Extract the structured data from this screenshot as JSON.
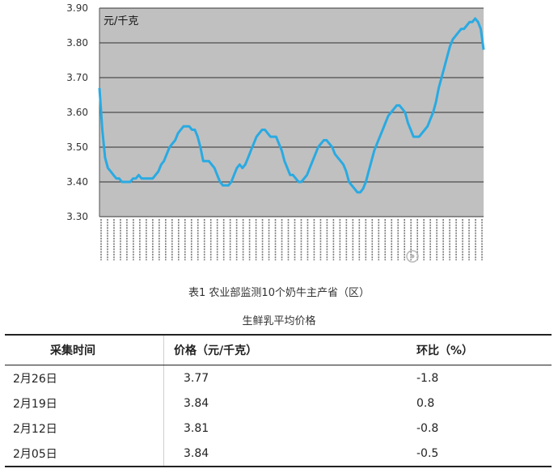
{
  "chart_data": {
    "type": "line",
    "unit_label": "元/千克",
    "ylim": [
      3.3,
      3.9
    ],
    "yticks": [
      "3.30",
      "3.40",
      "3.50",
      "3.60",
      "3.70",
      "3.80",
      "3.90"
    ],
    "grid": true,
    "line_color": "#29aae2",
    "plot_bg": "#c0c0c0",
    "series": [
      {
        "values": [
          3.67,
          3.55,
          3.47,
          3.44,
          3.43,
          3.42,
          3.41,
          3.41,
          3.4,
          3.4,
          3.4,
          3.4,
          3.41,
          3.41,
          3.42,
          3.41,
          3.41,
          3.41,
          3.41,
          3.41,
          3.42,
          3.43,
          3.45,
          3.46,
          3.48,
          3.5,
          3.51,
          3.52,
          3.54,
          3.55,
          3.56,
          3.56,
          3.56,
          3.55,
          3.55,
          3.53,
          3.5,
          3.46,
          3.46,
          3.46,
          3.45,
          3.44,
          3.42,
          3.4,
          3.39,
          3.39,
          3.39,
          3.4,
          3.42,
          3.44,
          3.45,
          3.44,
          3.45,
          3.47,
          3.49,
          3.51,
          3.53,
          3.54,
          3.55,
          3.55,
          3.54,
          3.53,
          3.53,
          3.53,
          3.51,
          3.49,
          3.46,
          3.44,
          3.42,
          3.42,
          3.41,
          3.4,
          3.4,
          3.41,
          3.42,
          3.44,
          3.46,
          3.48,
          3.5,
          3.51,
          3.52,
          3.52,
          3.51,
          3.5,
          3.48,
          3.47,
          3.46,
          3.45,
          3.43,
          3.4,
          3.39,
          3.38,
          3.37,
          3.37,
          3.38,
          3.4,
          3.43,
          3.46,
          3.49,
          3.51,
          3.53,
          3.55,
          3.57,
          3.59,
          3.6,
          3.61,
          3.62,
          3.62,
          3.61,
          3.6,
          3.57,
          3.55,
          3.53,
          3.53,
          3.53,
          3.54,
          3.55,
          3.56,
          3.58,
          3.6,
          3.63,
          3.67,
          3.7,
          3.73,
          3.76,
          3.79,
          3.81,
          3.82,
          3.83,
          3.84,
          3.84,
          3.85,
          3.86,
          3.86,
          3.87,
          3.86,
          3.84,
          3.78
        ]
      }
    ],
    "x_tick_count": 60
  },
  "watermark": "北京奶业协会",
  "caption": {
    "line1": "表1  农业部监测10个奶牛主产省（区）",
    "line2": "生鲜乳平均价格"
  },
  "table": {
    "headers": [
      "采集时间",
      "价格（元/千克）",
      "环比（%）"
    ],
    "rows": [
      [
        "2月26日",
        "3.77",
        "-1.8"
      ],
      [
        "2月19日",
        "3.84",
        "0.8"
      ],
      [
        "2月12日",
        "3.81",
        "-0.8"
      ],
      [
        "2月05日",
        "3.84",
        "-0.5"
      ]
    ]
  }
}
